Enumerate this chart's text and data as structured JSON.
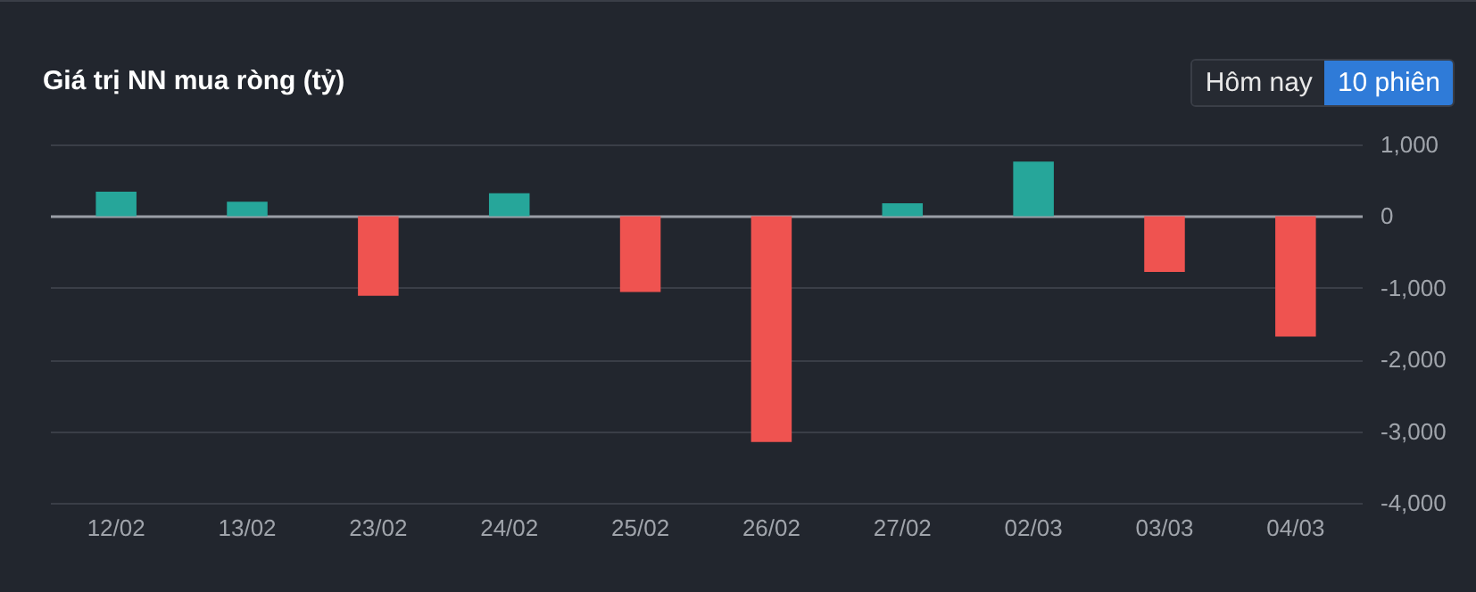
{
  "chart_data": {
    "type": "bar",
    "title": "Giá trị NN mua ròng (tỷ)",
    "categories": [
      "12/02",
      "13/02",
      "23/02",
      "24/02",
      "25/02",
      "26/02",
      "27/02",
      "02/03",
      "03/03",
      "04/03"
    ],
    "values": [
      340,
      200,
      -1110,
      320,
      -1060,
      -3150,
      180,
      760,
      -780,
      -1680
    ],
    "colors": [
      "#26a69a",
      "#26a69a",
      "#ef5350",
      "#26a69a",
      "#ef5350",
      "#ef5350",
      "#26a69a",
      "#26a69a",
      "#ef5350",
      "#ef5350"
    ],
    "ylim": [
      -4000,
      1000
    ],
    "yticks": [
      {
        "value": -4000,
        "label": "-4,000"
      },
      {
        "value": -3000,
        "label": "-3,000"
      },
      {
        "value": -2000,
        "label": "-2,000"
      },
      {
        "value": -1000,
        "label": "-1,000"
      },
      0,
      {
        "value": 1000,
        "label": "1,000"
      }
    ],
    "grid": "y",
    "annotations": [
      "Hôm nay",
      "10 phiên"
    ]
  }
}
